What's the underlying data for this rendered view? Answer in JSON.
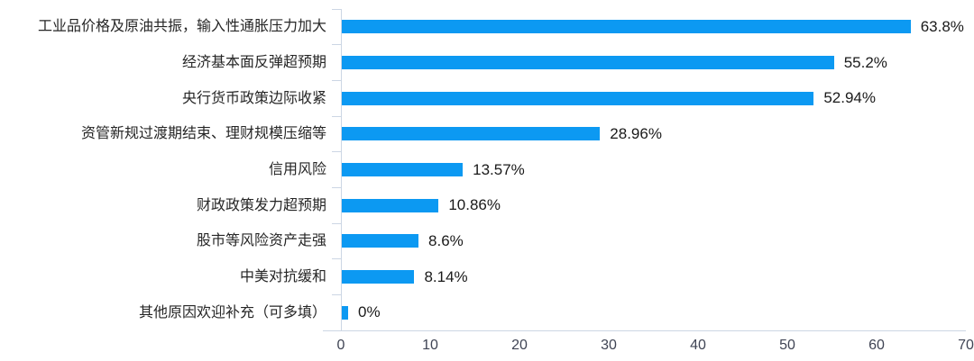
{
  "chart_data": {
    "type": "bar",
    "orientation": "horizontal",
    "title": "",
    "xlabel": "",
    "ylabel": "",
    "categories": [
      "工业品价格及原油共振，输入性通胀压力加大",
      "经济基本面反弹超预期",
      "央行货币政策边际收紧",
      "资管新规过渡期结束、理财规模压缩等",
      "信用风险",
      "财政政策发力超预期",
      "股市等风险资产走强",
      "中美对抗缓和",
      "其他原因欢迎补充（可多填）"
    ],
    "values": [
      63.8,
      55.2,
      52.94,
      28.96,
      13.57,
      10.86,
      8.6,
      8.14,
      0
    ],
    "value_labels": [
      "63.8%",
      "55.2%",
      "52.94%",
      "28.96%",
      "13.57%",
      "10.86%",
      "8.6%",
      "8.14%",
      "0%"
    ],
    "xlim": [
      0,
      70
    ],
    "x_ticks": [
      0,
      10,
      20,
      30,
      40,
      50,
      60,
      70
    ],
    "grid": false,
    "legend": null,
    "bar_color": "#0c99f2",
    "axis_color": "#ccd6e4",
    "label_color": "#262626",
    "value_color": "#1a1a1a",
    "tick_color": "#3f4454"
  }
}
